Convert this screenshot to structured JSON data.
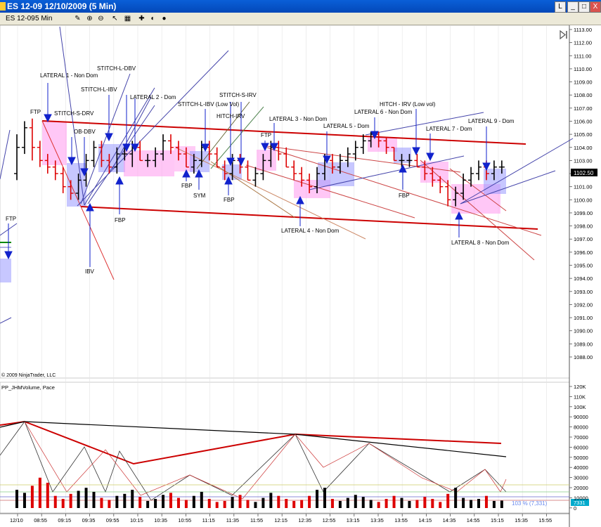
{
  "window": {
    "title": "ES 12-09  12/10/2009 (5 Min)",
    "buttons": [
      "L",
      "_",
      "□",
      "X"
    ]
  },
  "toolbar": {
    "instrument": "ES 12-09",
    "interval": "5 Min",
    "icons": [
      "pencil-icon",
      "zoom-in-icon",
      "zoom-out-icon",
      "cursor-icon",
      "properties-icon",
      "template-icon",
      "hide-icon",
      "refresh-icon"
    ]
  },
  "price_panel": {
    "current_price": "1102.50",
    "y_ticks": [
      "1113.00",
      "1112.00",
      "1111.00",
      "1110.00",
      "1109.00",
      "1108.00",
      "1107.00",
      "1106.00",
      "1105.00",
      "1104.00",
      "1103.00",
      "1102.00",
      "1101.00",
      "1100.00",
      "1099.00",
      "1098.00",
      "1097.00",
      "1096.00",
      "1095.00",
      "1094.00",
      "1093.00",
      "1092.00",
      "1091.00",
      "1090.00",
      "1089.00",
      "1088.00"
    ],
    "copyright": "© 2009 NinjaTrader, LLC",
    "annotations": {
      "lateral1": "LATERAL 1 - Non Dom",
      "stitch_l_dbv": "STITCH-L-DBV",
      "stitch_l_ibv": "STITCH-L-IBV",
      "lateral2": "LATERAL 2 - Dom",
      "stitch_s_drv": "STITCH-S-DRV",
      "ftp1": "FTP",
      "ob_dbv": "OB-DBV",
      "stitch_l_ibv_low": "STITCH-L-IBV (Low Vol)",
      "stitch_s_irv": "STITCH-S-IRV",
      "hitch_irv": "HITCH-IRV",
      "lateral3": "LATERAL 3 - Non Dom",
      "ftp2": "FTP",
      "lateral5": "LATERAL 5 - Dom",
      "lateral6": "LATERAL 6 - Non Dom",
      "hitch_irv_low": "HITCH - IRV (Low vol)",
      "lateral7": "LATERAL 7 - Dom",
      "lateral9": "LATERAL 9 - Dom",
      "fbp1": "FBP",
      "fbp2": "FBP",
      "fbp3": "FBP",
      "fbp4": "FBP",
      "sym": "SYM",
      "ibv": "IBV",
      "lateral4": "LATERAL 4 - Non Dom",
      "lateral8": "LATERAL 8 - Non Dom",
      "ftp_left": "FTP"
    }
  },
  "volume_panel": {
    "label": "PP_JHMVolume, Pace",
    "y_ticks": [
      "120K",
      "110K",
      "100K",
      "90000",
      "80000",
      "70000",
      "60000",
      "50000",
      "40000",
      "30000",
      "20000",
      "10000",
      "0"
    ],
    "overlay_text": "103 % (7,331)",
    "current_value": "7331"
  },
  "x_axis": {
    "labels": [
      "12/10",
      "08:55",
      "09:15",
      "09:35",
      "09:55",
      "10:15",
      "10:35",
      "10:55",
      "11:15",
      "11:35",
      "11:55",
      "12:15",
      "12:35",
      "12:55",
      "13:15",
      "13:35",
      "13:55",
      "14:15",
      "14:35",
      "14:55",
      "15:15",
      "15:35",
      "15:55"
    ]
  },
  "chart_data": {
    "type": "bar",
    "title": "ES 12-09  12/10/2009 (5 Min)",
    "x_labels": [
      "12/10",
      "08:55",
      "09:15",
      "09:35",
      "09:55",
      "10:15",
      "10:35",
      "10:55",
      "11:15",
      "11:35",
      "11:55",
      "12:15",
      "12:35",
      "12:55",
      "13:15",
      "13:35",
      "13:55",
      "14:15",
      "14:35",
      "14:55",
      "15:15",
      "15:35",
      "15:55"
    ],
    "ylim": [
      1088,
      1113
    ],
    "last_price": 1102.5,
    "ohlc_bars": [
      [
        1102.0,
        1105.0,
        1101.5,
        1104.0
      ],
      [
        1104.0,
        1106.0,
        1103.5,
        1105.5
      ],
      [
        1105.5,
        1106.2,
        1103.0,
        1104.0
      ],
      [
        1104.0,
        1104.5,
        1102.5,
        1103.0
      ],
      [
        1103.0,
        1103.5,
        1102.0,
        1102.5
      ],
      [
        1102.5,
        1103.0,
        1101.5,
        1102.0
      ],
      [
        1102.0,
        1102.5,
        1100.5,
        1101.0
      ],
      [
        1101.0,
        1101.5,
        1100.0,
        1100.5
      ],
      [
        1100.5,
        1102.0,
        1100.0,
        1101.5
      ],
      [
        1101.5,
        1103.5,
        1101.0,
        1103.0
      ],
      [
        1103.0,
        1104.5,
        1102.5,
        1104.0
      ],
      [
        1104.0,
        1104.5,
        1102.5,
        1103.0
      ],
      [
        1103.0,
        1103.5,
        1102.0,
        1102.5
      ],
      [
        1102.5,
        1104.0,
        1102.0,
        1103.5
      ],
      [
        1103.5,
        1104.0,
        1103.0,
        1103.5
      ],
      [
        1103.5,
        1104.5,
        1102.5,
        1104.0
      ],
      [
        1104.0,
        1104.5,
        1103.0,
        1103.0
      ],
      [
        1103.0,
        1103.5,
        1102.5,
        1103.0
      ],
      [
        1103.0,
        1104.0,
        1102.5,
        1103.5
      ],
      [
        1103.5,
        1105.0,
        1103.0,
        1104.5
      ],
      [
        1104.5,
        1105.0,
        1103.5,
        1104.0
      ],
      [
        1104.0,
        1104.5,
        1103.0,
        1103.5
      ],
      [
        1103.5,
        1104.0,
        1102.5,
        1102.5
      ],
      [
        1102.5,
        1103.5,
        1102.0,
        1103.0
      ],
      [
        1103.0,
        1104.5,
        1102.5,
        1104.0
      ],
      [
        1104.0,
        1104.5,
        1103.0,
        1103.5
      ],
      [
        1103.5,
        1104.0,
        1102.5,
        1102.5
      ],
      [
        1102.5,
        1103.0,
        1101.5,
        1102.0
      ],
      [
        1102.0,
        1103.5,
        1101.5,
        1103.0
      ],
      [
        1103.0,
        1103.5,
        1102.0,
        1102.5
      ],
      [
        1102.5,
        1103.0,
        1101.5,
        1101.5
      ],
      [
        1101.5,
        1102.5,
        1101.0,
        1102.0
      ],
      [
        1102.0,
        1103.5,
        1101.5,
        1103.0
      ],
      [
        1103.0,
        1104.5,
        1102.5,
        1104.0
      ],
      [
        1104.0,
        1104.5,
        1103.0,
        1103.5
      ],
      [
        1103.5,
        1104.0,
        1102.5,
        1102.5
      ],
      [
        1102.5,
        1103.0,
        1101.5,
        1102.0
      ],
      [
        1102.0,
        1102.5,
        1101.0,
        1101.5
      ],
      [
        1101.5,
        1102.0,
        1100.5,
        1101.0
      ],
      [
        1101.0,
        1102.5,
        1100.5,
        1102.0
      ],
      [
        1102.0,
        1103.5,
        1101.5,
        1103.0
      ],
      [
        1103.0,
        1103.5,
        1102.0,
        1102.5
      ],
      [
        1102.5,
        1103.5,
        1102.0,
        1103.0
      ],
      [
        1103.0,
        1104.0,
        1102.5,
        1103.5
      ],
      [
        1103.5,
        1104.5,
        1103.0,
        1104.0
      ],
      [
        1104.0,
        1105.0,
        1103.5,
        1104.5
      ],
      [
        1104.5,
        1105.2,
        1104.0,
        1105.0
      ],
      [
        1105.0,
        1105.2,
        1104.0,
        1104.5
      ],
      [
        1104.5,
        1104.8,
        1103.5,
        1104.0
      ],
      [
        1104.0,
        1104.0,
        1103.0,
        1103.0
      ],
      [
        1103.0,
        1103.5,
        1102.5,
        1103.0
      ],
      [
        1103.0,
        1103.5,
        1102.5,
        1103.0
      ],
      [
        1103.0,
        1103.5,
        1102.5,
        1102.5
      ],
      [
        1102.5,
        1103.0,
        1101.5,
        1102.0
      ],
      [
        1102.0,
        1102.5,
        1101.0,
        1101.5
      ],
      [
        1101.5,
        1101.8,
        1100.5,
        1101.0
      ],
      [
        1101.0,
        1101.5,
        1099.5,
        1100.0
      ],
      [
        1100.0,
        1101.0,
        1099.5,
        1100.5
      ],
      [
        1100.5,
        1102.0,
        1100.0,
        1101.5
      ],
      [
        1101.5,
        1102.5,
        1101.0,
        1102.0
      ],
      [
        1102.0,
        1103.0,
        1101.5,
        1102.5
      ],
      [
        1102.5,
        1103.0,
        1101.5,
        1102.0
      ],
      [
        1102.0,
        1103.0,
        1101.5,
        1102.5
      ],
      [
        1102.5,
        1103.0,
        1102.0,
        1102.5
      ]
    ],
    "volume": [
      18000,
      15000,
      22000,
      30000,
      25000,
      12000,
      9000,
      14000,
      17000,
      20000,
      16000,
      10000,
      8000,
      12000,
      14000,
      18000,
      11000,
      7000,
      9000,
      13000,
      15000,
      10000,
      8000,
      12000,
      16000,
      9000,
      6000,
      7000,
      11000,
      13000,
      8000,
      6000,
      10000,
      15000,
      12000,
      9000,
      7000,
      8000,
      12000,
      18000,
      20000,
      9000,
      7000,
      10000,
      13000,
      11000,
      8000,
      6000,
      9000,
      12000,
      10000,
      7000,
      8000,
      11000,
      9000,
      6000,
      14000,
      20000,
      10000,
      8000,
      9000,
      12000,
      7000,
      7331
    ]
  }
}
